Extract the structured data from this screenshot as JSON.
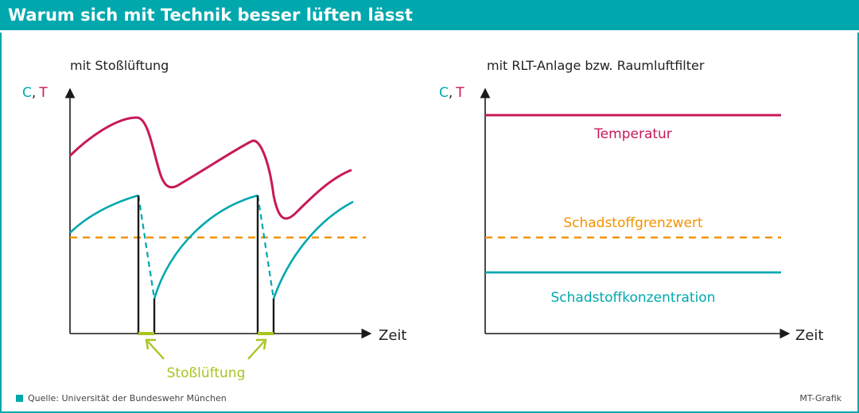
{
  "header": {
    "title": "Warum sich mit Technik besser lüften lässt"
  },
  "colors": {
    "teal": "#00a8ae",
    "crimson": "#c8185a",
    "orange": "#f39200",
    "green": "#a6c520",
    "axis": "#1a1a1a"
  },
  "left_panel": {
    "title": "mit Stoßlüftung",
    "axis_c": "C",
    "axis_comma": ",",
    "axis_t": "T",
    "x_label": "Zeit",
    "event_label": "Stoßlüftung"
  },
  "right_panel": {
    "title": "mit RLT-Anlage bzw. Raumluftfilter",
    "axis_c": "C",
    "axis_comma": ",",
    "axis_t": "T",
    "x_label": "Zeit",
    "label_temperature": "Temperatur",
    "label_threshold": "Schadstoffgrenzwert",
    "label_concentration": "Schadstoffkonzentration"
  },
  "footer": {
    "source": "Quelle: Universität der Bundeswehr München",
    "credit": "MT-Grafik"
  }
}
